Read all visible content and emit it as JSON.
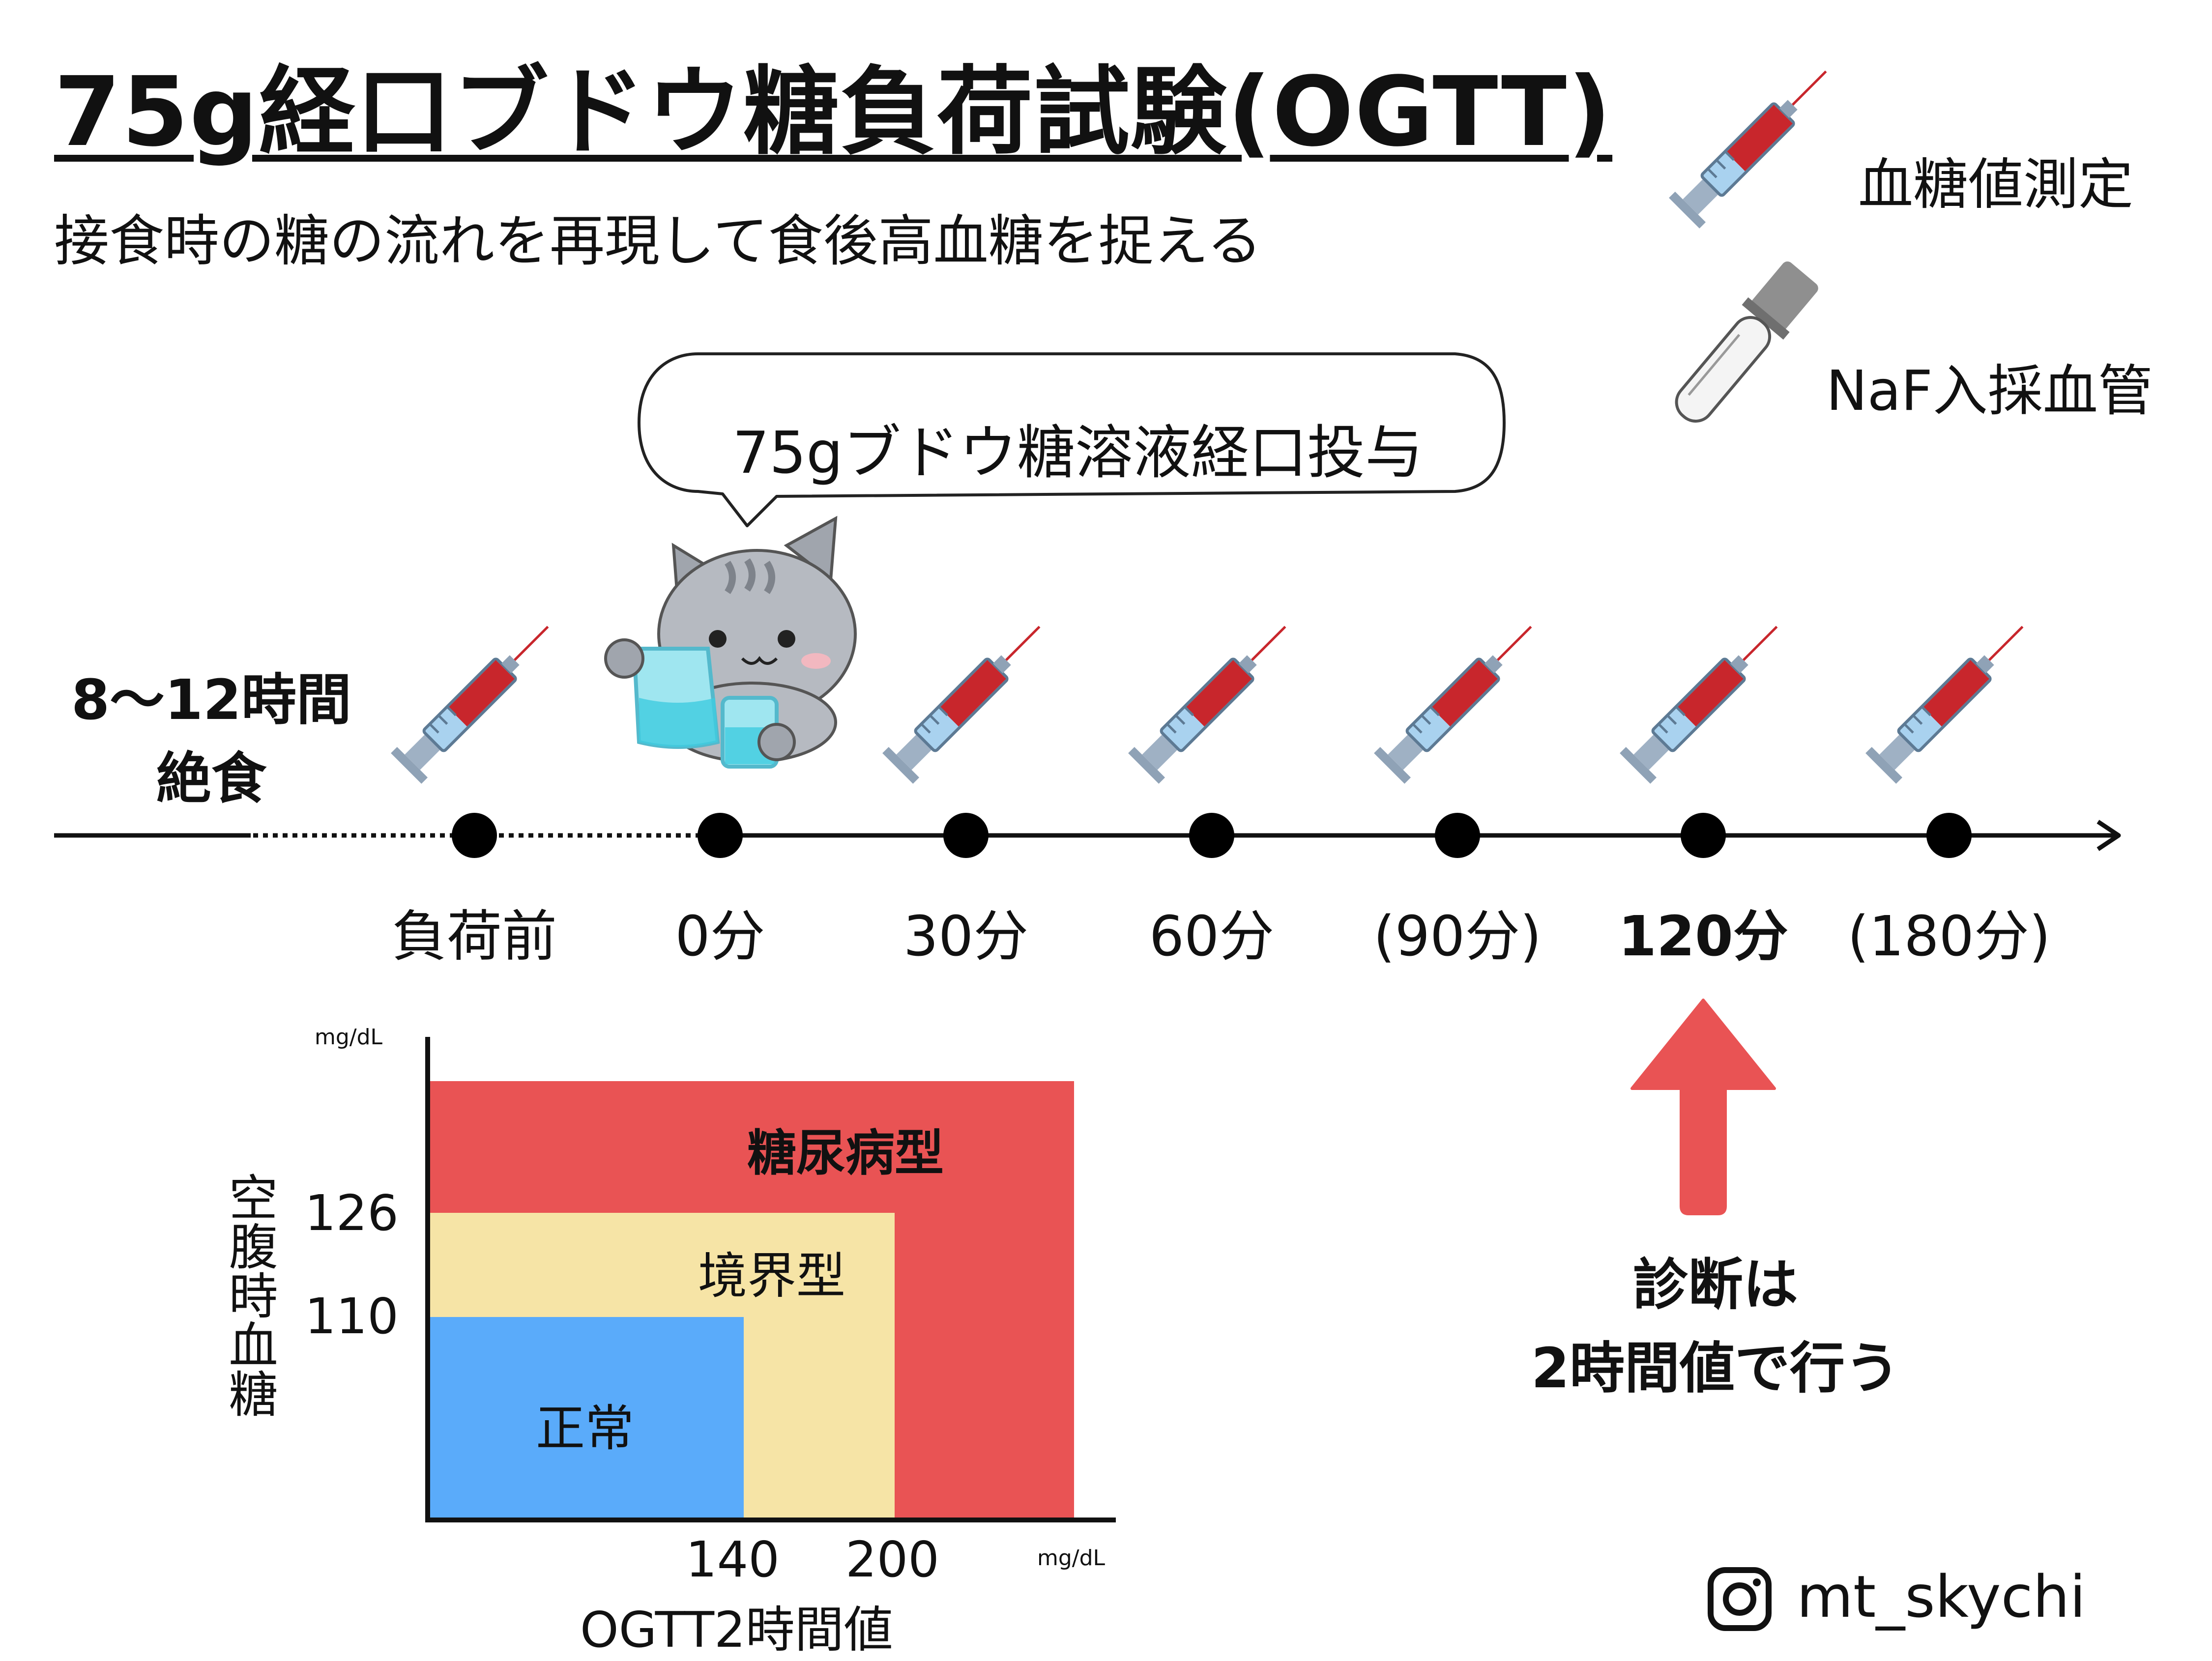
{
  "title": "75g経口ブドウ糖負荷試験(OGTT)",
  "subtitle": "接食時の糖の流れを再現して食後高血糖を捉える",
  "legend": {
    "syringe": {
      "icon": "syringe-icon",
      "label": "血糖値測定"
    },
    "tube": {
      "icon": "blood-tube-icon",
      "label": "NaF入採血管"
    }
  },
  "fasting": {
    "line1": "8〜12時間",
    "line2": "絶食"
  },
  "bubble": {
    "text": "75gブドウ糖溶液経口投与"
  },
  "timeline": {
    "points": [
      {
        "label": "負荷前",
        "bold": false
      },
      {
        "label": "0分",
        "bold": false
      },
      {
        "label": "30分",
        "bold": false
      },
      {
        "label": "60分",
        "bold": false
      },
      {
        "label": "(90分)",
        "bold": false
      },
      {
        "label": "120分",
        "bold": true
      },
      {
        "label": "(180分)",
        "bold": false
      }
    ]
  },
  "chart_data": {
    "type": "area",
    "xlabel": "OGTT2時間値",
    "ylabel": "空腹時血糖",
    "x_unit": "mg/dL",
    "y_unit": "mg/dL",
    "x_ticks": [
      140,
      200
    ],
    "y_ticks": [
      110,
      126
    ],
    "regions": [
      {
        "name": "正常",
        "x_max": 140,
        "y_max": 110,
        "color": "#5aabfa"
      },
      {
        "name": "境界型",
        "x_max": 200,
        "y_max": 126,
        "color": "#f6e4a6"
      },
      {
        "name": "糖尿病型",
        "x_min": 200,
        "y_min": 126,
        "color": "#e95354"
      }
    ]
  },
  "labels": {
    "zone_normal": "正常",
    "zone_border": "境界型",
    "zone_diabetes": "糖尿病型",
    "y_tick_126": "126",
    "y_tick_110": "110",
    "x_tick_140": "140",
    "x_tick_200": "200",
    "unit_y": "mg/dL",
    "unit_x": "mg/dL",
    "xlabel": "OGTT2時間値",
    "ylabel": "空腹時血糖"
  },
  "diagnosis": {
    "line1": "診断は",
    "line2": "2時間値で行う"
  },
  "instagram": {
    "icon": "instagram-icon",
    "handle": "mt_skychi"
  },
  "colors": {
    "arrow": "#e95354",
    "syringe_blood": "#c8262c",
    "timeline": "#000000"
  }
}
